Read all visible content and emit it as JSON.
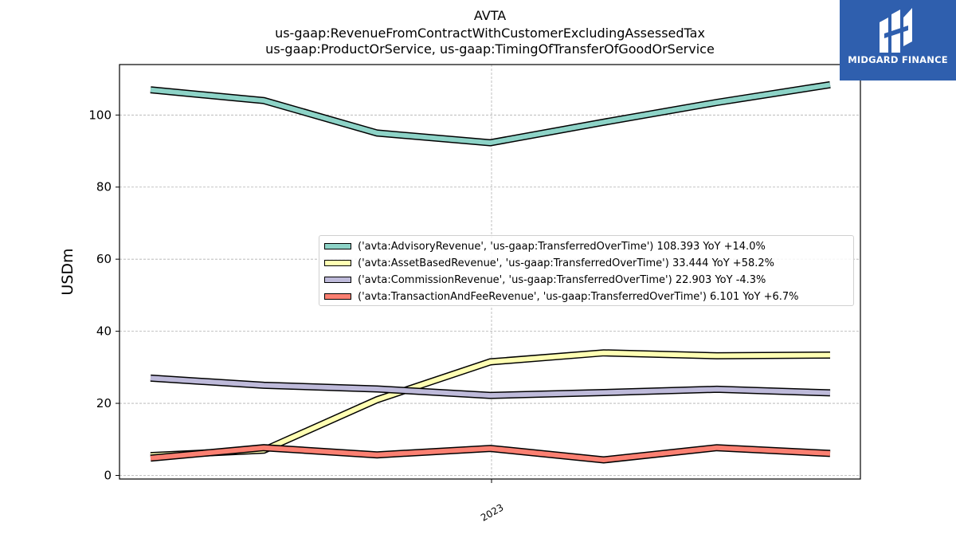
{
  "title_lines": [
    "AVTA",
    "us-gaap:RevenueFromContractWithCustomerExcludingAssessedTax",
    "us-gaap:ProductOrService, us-gaap:TimingOfTransferOfGoodOrService"
  ],
  "logo": {
    "text": "MIDGARD FINANCE",
    "color": "#2f5fae"
  },
  "chart_data": {
    "type": "line",
    "title": "AVTA",
    "subtitle": "us-gaap:RevenueFromContractWithCustomerExcludingAssessedTax\nus-gaap:ProductOrService, us-gaap:TimingOfTransferOfGoodOrService",
    "xlabel": "",
    "ylabel": "USDm",
    "x_tick_labels": [
      "2023"
    ],
    "y_ticks": [
      0,
      20,
      40,
      60,
      80,
      100
    ],
    "ylim": [
      -1,
      114
    ],
    "grid": true,
    "legend_position": "center-right",
    "series": [
      {
        "name": "('avta:AdvisoryRevenue', 'us-gaap:TransferredOverTime') 108.393 YoY +14.0%",
        "color": "#8dd3c7",
        "values": [
          107.0,
          104.0,
          95.0,
          92.3,
          98.0,
          103.5,
          108.4
        ]
      },
      {
        "name": "('avta:AssetBasedRevenue', 'us-gaap:TransferredOverTime') 33.444 YoY +58.2%",
        "color": "#ffffb3",
        "values": [
          5.5,
          7.0,
          21.0,
          31.5,
          34.0,
          33.2,
          33.4
        ]
      },
      {
        "name": "('avta:CommissionRevenue', 'us-gaap:TransferredOverTime') 22.903 YoY -4.3%",
        "color": "#bebada",
        "values": [
          27.0,
          25.0,
          24.0,
          22.2,
          23.0,
          23.9,
          22.9
        ]
      },
      {
        "name": "('avta:TransactionAndFeeRevenue', 'us-gaap:TransferredOverTime') 6.101 YoY +6.7%",
        "color": "#fb8072",
        "values": [
          4.8,
          7.7,
          5.7,
          7.5,
          4.3,
          7.7,
          6.1
        ]
      }
    ]
  }
}
